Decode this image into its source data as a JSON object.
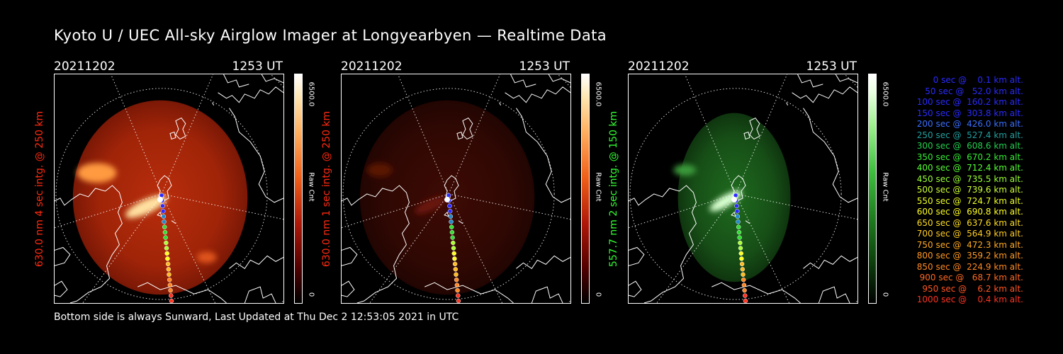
{
  "title": "Kyoto U / UEC All-sky Airglow Imager at Longyearbyen — Realtime Data",
  "footer": "Bottom side is always Sunward, Last Updated at Thu Dec  2 12:53:05 2021 in UTC",
  "panels": [
    {
      "date": "20211202",
      "time": "1253 UT",
      "side_label": "630.0 nm 4 sec intg. @ 250 km",
      "side_color": "#ff2a10",
      "cbar_max": "6500.0",
      "cbar_unit": "Raw Cnt",
      "cbar_min": "0",
      "colormap": "red",
      "brightness": "bright"
    },
    {
      "date": "20211202",
      "time": "1253 UT",
      "side_label": "630.0 nm 1 sec intg. @ 250 km",
      "side_color": "#ff2a10",
      "cbar_max": "6500.0",
      "cbar_unit": "Raw Cnt",
      "cbar_min": "0",
      "colormap": "red",
      "brightness": "dim"
    },
    {
      "date": "20211202",
      "time": "1253 UT",
      "side_label": "557.7 nm 2 sec intg. @ 150 km",
      "side_color": "#33ff33",
      "cbar_max": "6500.0",
      "cbar_unit": "Raw Cnt",
      "cbar_min": "0",
      "colormap": "green",
      "brightness": "medium"
    }
  ],
  "legend": [
    {
      "text": "   0 sec @    0.1 km alt.",
      "color": "#2a2aff"
    },
    {
      "text": "  50 sec @   52.0 km alt.",
      "color": "#2a2aff"
    },
    {
      "text": " 100 sec @  160.2 km alt.",
      "color": "#2a2aff"
    },
    {
      "text": " 150 sec @  303.8 km alt.",
      "color": "#2a2aff"
    },
    {
      "text": " 200 sec @  426.0 km alt.",
      "color": "#3a6fff"
    },
    {
      "text": " 250 sec @  527.4 km alt.",
      "color": "#22a0a0"
    },
    {
      "text": " 300 sec @  608.6 km alt.",
      "color": "#22d050"
    },
    {
      "text": " 350 sec @  670.2 km alt.",
      "color": "#33ee33"
    },
    {
      "text": " 400 sec @  712.4 km alt.",
      "color": "#55ff33"
    },
    {
      "text": " 450 sec @  735.5 km alt.",
      "color": "#99ff33"
    },
    {
      "text": " 500 sec @  739.6 km alt.",
      "color": "#ccff33"
    },
    {
      "text": " 550 sec @  724.7 km alt.",
      "color": "#eeff22"
    },
    {
      "text": " 600 sec @  690.8 km alt.",
      "color": "#ffff22"
    },
    {
      "text": " 650 sec @  637.6 km alt.",
      "color": "#ffdd22"
    },
    {
      "text": " 700 sec @  564.9 km alt.",
      "color": "#ffcc22"
    },
    {
      "text": " 750 sec @  472.3 km alt.",
      "color": "#ffaa22"
    },
    {
      "text": " 800 sec @  359.2 km alt.",
      "color": "#ff9922"
    },
    {
      "text": " 850 sec @  224.9 km alt.",
      "color": "#ff8822"
    },
    {
      "text": " 900 sec @   68.7 km alt.",
      "color": "#ff6a22"
    },
    {
      "text": " 950 sec @    6.2 km alt.",
      "color": "#ff5522"
    },
    {
      "text": "1000 sec @    0.4 km alt.",
      "color": "#ff3322"
    }
  ]
}
